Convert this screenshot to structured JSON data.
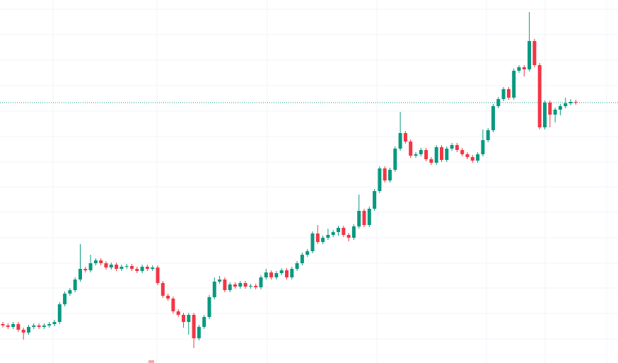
{
  "chart_data": {
    "type": "candlestick",
    "up_color": "#089981",
    "down_color": "#f23645",
    "ylim": [
      0,
      513
    ],
    "open": [
      55,
      53,
      51,
      55,
      47,
      43,
      51,
      53,
      51,
      53,
      55,
      58,
      83,
      98,
      103,
      118,
      133,
      131,
      141,
      145,
      141,
      135,
      139,
      133,
      136,
      137,
      133,
      130,
      136,
      133,
      135,
      113,
      95,
      91,
      73,
      68,
      58,
      68,
      35,
      51,
      65,
      93,
      115,
      118,
      103,
      111,
      108,
      113,
      108,
      109,
      107,
      121,
      128,
      121,
      127,
      131,
      121,
      133,
      141,
      153,
      158,
      183,
      171,
      177,
      181,
      185,
      191,
      181,
      177,
      193,
      215,
      195,
      218,
      243,
      275,
      258,
      273,
      303,
      325,
      313,
      293,
      295,
      301,
      288,
      283,
      305,
      287,
      303,
      308,
      301,
      295,
      291,
      286,
      295,
      315,
      329,
      363,
      373,
      387,
      375,
      413,
      418,
      415,
      455,
      421,
      333,
      368,
      351,
      358,
      363,
      367,
      369
    ],
    "high": [
      58,
      56,
      58,
      58,
      50,
      54,
      56,
      56,
      56,
      58,
      61,
      86,
      101,
      106,
      121,
      168,
      136,
      153,
      148,
      148,
      144,
      142,
      142,
      139,
      140,
      140,
      136,
      139,
      139,
      138,
      138,
      116,
      98,
      94,
      76,
      71,
      71,
      71,
      54,
      68,
      96,
      121,
      123,
      121,
      114,
      114,
      116,
      116,
      112,
      112,
      124,
      133,
      131,
      130,
      134,
      134,
      136,
      144,
      156,
      161,
      186,
      195,
      180,
      190,
      188,
      194,
      194,
      184,
      196,
      238,
      218,
      221,
      246,
      278,
      278,
      276,
      306,
      355,
      328,
      316,
      298,
      304,
      304,
      291,
      308,
      308,
      306,
      311,
      311,
      304,
      298,
      294,
      298,
      330,
      332,
      366,
      376,
      390,
      390,
      416,
      421,
      421,
      496,
      458,
      424,
      371,
      371,
      361,
      366,
      375,
      373,
      372
    ],
    "low": [
      50,
      48,
      48,
      44,
      33,
      40,
      48,
      48,
      48,
      50,
      52,
      55,
      80,
      95,
      100,
      115,
      128,
      128,
      138,
      138,
      132,
      132,
      130,
      130,
      133,
      130,
      127,
      127,
      130,
      130,
      110,
      92,
      88,
      70,
      65,
      50,
      40,
      21,
      32,
      48,
      62,
      90,
      112,
      100,
      100,
      105,
      105,
      105,
      105,
      104,
      104,
      118,
      118,
      118,
      124,
      118,
      118,
      130,
      138,
      150,
      155,
      168,
      168,
      174,
      178,
      180,
      178,
      172,
      174,
      190,
      192,
      192,
      215,
      240,
      255,
      255,
      270,
      300,
      310,
      290,
      290,
      292,
      285,
      280,
      280,
      284,
      284,
      300,
      298,
      292,
      288,
      283,
      283,
      292,
      312,
      326,
      360,
      370,
      372,
      372,
      410,
      405,
      412,
      418,
      330,
      330,
      333,
      340,
      350,
      360,
      364,
      365
    ],
    "close": [
      53,
      51,
      55,
      47,
      43,
      51,
      53,
      51,
      53,
      55,
      58,
      83,
      98,
      103,
      118,
      133,
      131,
      141,
      145,
      141,
      135,
      139,
      133,
      136,
      137,
      133,
      130,
      136,
      133,
      135,
      113,
      95,
      91,
      73,
      68,
      58,
      68,
      35,
      51,
      65,
      93,
      115,
      118,
      103,
      111,
      108,
      113,
      108,
      109,
      107,
      121,
      128,
      121,
      127,
      131,
      121,
      133,
      141,
      153,
      158,
      183,
      171,
      177,
      181,
      185,
      191,
      181,
      177,
      193,
      215,
      195,
      218,
      243,
      275,
      258,
      273,
      303,
      325,
      313,
      293,
      295,
      301,
      288,
      283,
      305,
      287,
      303,
      308,
      301,
      295,
      291,
      286,
      295,
      315,
      329,
      363,
      373,
      387,
      375,
      413,
      418,
      415,
      455,
      421,
      333,
      368,
      351,
      358,
      363,
      367,
      369,
      368
    ]
  }
}
